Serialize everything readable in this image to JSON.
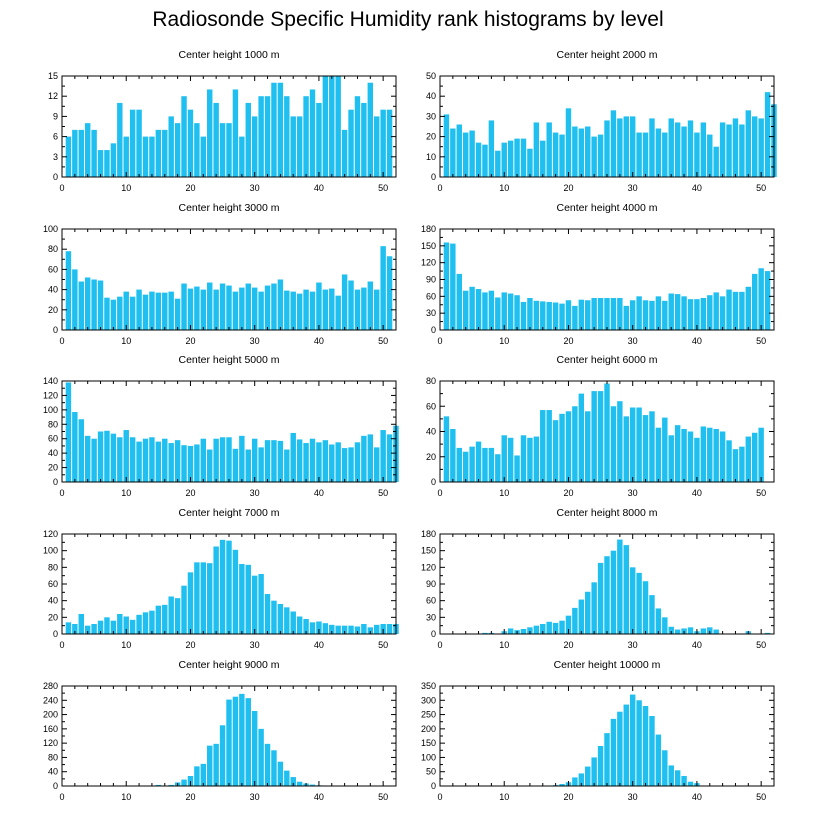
{
  "title": "Radiosonde Specific Humidity rank histograms by level",
  "bar_color": "#1FBFF0",
  "chart_data": [
    {
      "type": "bar",
      "title": "Center height 1000 m",
      "xlim": [
        0,
        52
      ],
      "ylim": [
        0,
        15
      ],
      "xticks": [
        0,
        10,
        20,
        30,
        40,
        50
      ],
      "yticks": [
        0,
        3,
        6,
        9,
        12,
        15
      ],
      "values": [
        6,
        7,
        7,
        8,
        7,
        4,
        4,
        5,
        11,
        6,
        10,
        10,
        6,
        6,
        7,
        7,
        9,
        8,
        12,
        10,
        8,
        6,
        13,
        11,
        8,
        8,
        13,
        6,
        11,
        9,
        12,
        12,
        14,
        14,
        12,
        9,
        9,
        12,
        13,
        11,
        15,
        15,
        15,
        7,
        10,
        12,
        11,
        14,
        9,
        10,
        10
      ]
    },
    {
      "type": "bar",
      "title": "Center height 2000 m",
      "xlim": [
        0,
        52
      ],
      "ylim": [
        0,
        50
      ],
      "xticks": [
        0,
        10,
        20,
        30,
        40,
        50
      ],
      "yticks": [
        0,
        10,
        20,
        30,
        40,
        50
      ],
      "values": [
        31,
        24,
        26,
        22,
        23,
        17,
        16,
        28,
        13,
        17,
        18,
        19,
        19,
        14,
        27,
        18,
        27,
        22,
        21,
        34,
        25,
        24,
        25,
        20,
        21,
        28,
        33,
        29,
        30,
        30,
        22,
        22,
        29,
        24,
        22,
        29,
        27,
        25,
        28,
        22,
        27,
        21,
        15,
        27,
        26,
        29,
        26,
        33,
        30,
        29,
        42,
        36
      ]
    },
    {
      "type": "bar",
      "title": "Center height 3000 m",
      "xlim": [
        0,
        52
      ],
      "ylim": [
        0,
        100
      ],
      "xticks": [
        0,
        10,
        20,
        30,
        40,
        50
      ],
      "yticks": [
        0,
        20,
        40,
        60,
        80,
        100
      ],
      "values": [
        78,
        60,
        48,
        52,
        50,
        49,
        32,
        30,
        33,
        38,
        33,
        40,
        35,
        38,
        37,
        37,
        38,
        31,
        46,
        41,
        43,
        40,
        47,
        40,
        46,
        44,
        38,
        42,
        46,
        42,
        38,
        44,
        46,
        50,
        39,
        38,
        36,
        40,
        38,
        47,
        40,
        41,
        34,
        55,
        49,
        40,
        42,
        48,
        40,
        83,
        73
      ]
    },
    {
      "type": "bar",
      "title": "Center height 4000 m",
      "xlim": [
        0,
        52
      ],
      "ylim": [
        0,
        180
      ],
      "xticks": [
        0,
        10,
        20,
        30,
        40,
        50
      ],
      "yticks": [
        0,
        30,
        60,
        90,
        120,
        150,
        180
      ],
      "values": [
        156,
        154,
        100,
        70,
        77,
        73,
        67,
        70,
        58,
        67,
        65,
        62,
        50,
        57,
        52,
        51,
        50,
        49,
        47,
        53,
        43,
        54,
        53,
        57,
        57,
        57,
        57,
        57,
        43,
        53,
        60,
        53,
        52,
        60,
        52,
        65,
        64,
        60,
        55,
        55,
        57,
        62,
        67,
        60,
        72,
        68,
        68,
        77,
        100,
        110,
        105
      ]
    },
    {
      "type": "bar",
      "title": "Center height 5000 m",
      "xlim": [
        0,
        52
      ],
      "ylim": [
        0,
        140
      ],
      "xticks": [
        0,
        10,
        20,
        30,
        40,
        50
      ],
      "yticks": [
        0,
        20,
        40,
        60,
        80,
        100,
        120,
        140
      ],
      "values": [
        138,
        97,
        87,
        64,
        60,
        70,
        71,
        67,
        62,
        72,
        62,
        56,
        60,
        62,
        56,
        60,
        54,
        58,
        51,
        50,
        52,
        60,
        45,
        60,
        62,
        62,
        46,
        64,
        45,
        60,
        48,
        58,
        58,
        57,
        45,
        68,
        59,
        54,
        60,
        55,
        58,
        52,
        55,
        47,
        48,
        55,
        64,
        66,
        48,
        72,
        66,
        78
      ]
    },
    {
      "type": "bar",
      "title": "Center height 6000 m",
      "xlim": [
        0,
        52
      ],
      "ylim": [
        0,
        80
      ],
      "xticks": [
        0,
        10,
        20,
        30,
        40,
        50
      ],
      "yticks": [
        0,
        20,
        40,
        60,
        80
      ],
      "values": [
        52,
        42,
        27,
        24,
        28,
        32,
        27,
        27,
        22,
        37,
        35,
        21,
        37,
        35,
        36,
        57,
        57,
        49,
        54,
        56,
        60,
        70,
        56,
        72,
        72,
        78,
        60,
        64,
        52,
        59,
        59,
        53,
        56,
        43,
        51,
        37,
        45,
        42,
        40,
        35,
        44,
        43,
        42,
        40,
        33,
        26,
        28,
        36,
        39,
        43
      ]
    },
    {
      "type": "bar",
      "title": "Center height 7000 m",
      "xlim": [
        0,
        52
      ],
      "ylim": [
        0,
        120
      ],
      "xticks": [
        0,
        10,
        20,
        30,
        40,
        50
      ],
      "yticks": [
        0,
        20,
        40,
        60,
        80,
        100,
        120
      ],
      "values": [
        14,
        12,
        24,
        10,
        12,
        16,
        20,
        16,
        24,
        21,
        17,
        23,
        26,
        28,
        34,
        35,
        45,
        43,
        58,
        74,
        86,
        86,
        85,
        105,
        113,
        112,
        101,
        84,
        83,
        70,
        72,
        48,
        40,
        36,
        32,
        27,
        21,
        18,
        14,
        15,
        13,
        11,
        10,
        10,
        10,
        9,
        12,
        8,
        11,
        12,
        12,
        12
      ]
    },
    {
      "type": "bar",
      "title": "Center height 8000 m",
      "xlim": [
        0,
        52
      ],
      "ylim": [
        0,
        180
      ],
      "xticks": [
        0,
        10,
        20,
        30,
        40,
        50
      ],
      "yticks": [
        0,
        30,
        60,
        90,
        120,
        150,
        180
      ],
      "values": [
        0,
        0,
        0,
        0,
        0,
        0,
        2,
        2,
        0,
        5,
        10,
        7,
        9,
        12,
        15,
        18,
        22,
        20,
        24,
        33,
        47,
        62,
        76,
        93,
        128,
        140,
        150,
        170,
        160,
        120,
        110,
        95,
        70,
        46,
        30,
        13,
        8,
        10,
        12,
        5,
        10,
        12,
        8,
        0,
        0,
        0,
        0,
        5,
        0,
        0,
        2,
        0
      ]
    },
    {
      "type": "bar",
      "title": "Center height 9000 m",
      "xlim": [
        0,
        52
      ],
      "ylim": [
        0,
        280
      ],
      "xticks": [
        0,
        10,
        20,
        30,
        40,
        50
      ],
      "yticks": [
        0,
        40,
        80,
        120,
        160,
        200,
        240,
        280
      ],
      "values": [
        0,
        0,
        0,
        0,
        0,
        0,
        0,
        0,
        0,
        0,
        0,
        0,
        0,
        0,
        3,
        0,
        3,
        10,
        18,
        28,
        55,
        62,
        113,
        118,
        170,
        242,
        250,
        258,
        246,
        210,
        160,
        118,
        100,
        68,
        43,
        25,
        12,
        7,
        4,
        2,
        0,
        0,
        0,
        0,
        0,
        0,
        0,
        0,
        0,
        0,
        0,
        0
      ]
    },
    {
      "type": "bar",
      "title": "Center height 10000 m",
      "xlim": [
        0,
        52
      ],
      "ylim": [
        0,
        350
      ],
      "xticks": [
        0,
        10,
        20,
        30,
        40,
        50
      ],
      "yticks": [
        0,
        50,
        100,
        150,
        200,
        250,
        300,
        350
      ],
      "values": [
        0,
        0,
        0,
        0,
        0,
        0,
        0,
        0,
        0,
        0,
        0,
        0,
        0,
        0,
        0,
        0,
        0,
        3,
        7,
        13,
        30,
        44,
        68,
        100,
        140,
        185,
        235,
        260,
        285,
        320,
        300,
        280,
        245,
        180,
        125,
        72,
        55,
        35,
        15,
        10,
        0,
        0,
        0,
        0,
        0,
        0,
        0,
        0,
        0,
        0,
        0,
        0
      ]
    }
  ]
}
